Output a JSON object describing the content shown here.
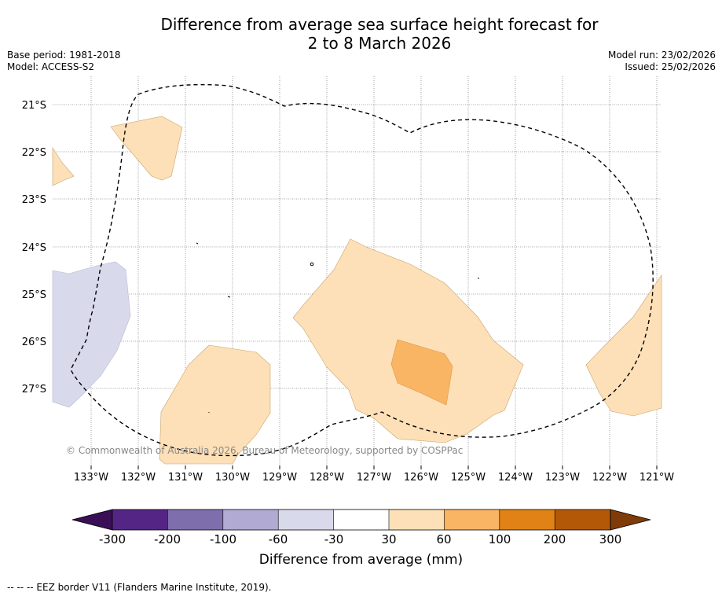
{
  "title_line1": "Difference from average sea surface height forecast for",
  "title_line2": "2 to 8 March 2026",
  "meta_left": [
    "Base period: 1981-2018",
    "Model: ACCESS-S2"
  ],
  "meta_right": [
    "Model run: 23/02/2026",
    "Issued: 25/02/2026"
  ],
  "map": {
    "lon_labels": [
      "133°W",
      "132°W",
      "131°W",
      "130°W",
      "129°W",
      "128°W",
      "127°W",
      "126°W",
      "125°W",
      "124°W",
      "123°W",
      "122°W",
      "121°W"
    ],
    "lat_labels": [
      "21°S",
      "22°S",
      "23°S",
      "24°S",
      "25°S",
      "26°S",
      "27°S"
    ],
    "copyright": "© Commonwealth of Australia 2026, Bureau of Meteorology, supported by COSPPac"
  },
  "colorbar": {
    "ticks": [
      "-300",
      "-200",
      "-100",
      "-60",
      "-30",
      "30",
      "60",
      "100",
      "200",
      "300"
    ],
    "colors": [
      "#3a0f56",
      "#552586",
      "#7e6eab",
      "#b1aad3",
      "#d9d9ec",
      "#ffffff",
      "#fde0b7",
      "#f9b563",
      "#e08215",
      "#b35807",
      "#7f3b08"
    ],
    "title": "Difference from average (mm)"
  },
  "footnote": "--  --  -- EEZ border V11 (Flanders Marine Institute, 2019)."
}
